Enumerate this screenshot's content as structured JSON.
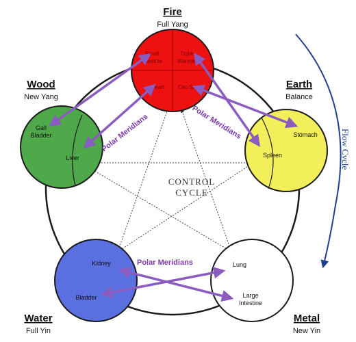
{
  "elements": {
    "fire": {
      "name": "Fire",
      "subtitle": "Full Yang",
      "color": "#ee1111"
    },
    "earth": {
      "name": "Earth",
      "subtitle": "Balance",
      "color": "#f3ef5a"
    },
    "metal": {
      "name": "Metal",
      "subtitle": "New Yin",
      "color": "#ffffff"
    },
    "water": {
      "name": "Water",
      "subtitle": "Full Yin",
      "color": "#5a6fe0"
    },
    "wood": {
      "name": "Wood",
      "subtitle": "New Yang",
      "color": "#4fa84a"
    }
  },
  "organs": {
    "small_intestine": "Small Intestine",
    "triple_warmer": "Triple Warmer",
    "heart": "Heart",
    "circ_sex": "Circ-Sex",
    "stomach": "Stomach",
    "spleen": "Spleen",
    "lung": "Lung",
    "large_intestine": "Large Intestine",
    "kidney": "Kidney",
    "bladder": "Bladder",
    "gall_bladder": "Gall Bladder",
    "liver": "Liver"
  },
  "labels": {
    "polar_meridians": "Polar Meridians",
    "control_cycle": "CONTROL CYCLE",
    "flow_cycle": "Flow Cycle"
  },
  "colors": {
    "arrow_purple": "#8a5cc0",
    "flow_arrow": "#1f3f8f",
    "outline": "#1a1a1a"
  }
}
